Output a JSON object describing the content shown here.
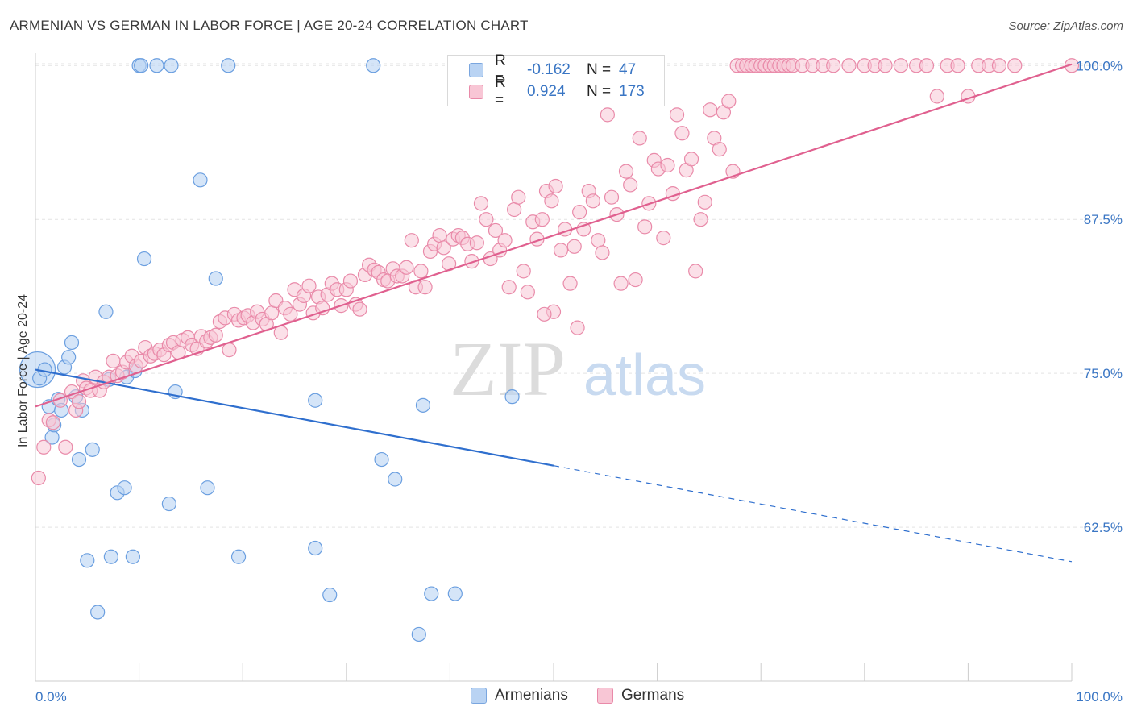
{
  "title": "ARMENIAN VS GERMAN IN LABOR FORCE | AGE 20-24 CORRELATION CHART",
  "source": "Source: ZipAtlas.com",
  "watermark": {
    "zip": "ZIP",
    "atlas": "atlas"
  },
  "legend": {
    "rows": [
      {
        "r_label": "R =",
        "r_value": "-0.162",
        "n_label": "N =",
        "n_value": "47",
        "color": "#a9c8ef"
      },
      {
        "r_label": "R =",
        "r_value": "0.924",
        "n_label": "N =",
        "n_value": "173",
        "color": "#f5b6c9"
      }
    ]
  },
  "bottom_legend": [
    "Armenians",
    "Germans"
  ],
  "chart_data": {
    "type": "scatter",
    "xlabel": "",
    "ylabel": "In Labor Force | Age 20-24",
    "xlim": [
      0,
      100
    ],
    "ylim": [
      50.0,
      101.0
    ],
    "x_tick_labels": [
      "0.0%",
      "100.0%"
    ],
    "y_ticks": [
      62.5,
      75.0,
      87.5,
      100.0
    ],
    "y_tick_labels": [
      "62.5%",
      "75.0%",
      "87.5%",
      "100.0%"
    ],
    "grid": true,
    "legend_position": "top-center",
    "colors": {
      "armenians": "#6b9fe0",
      "armenians_fill": "#b9d3f3",
      "armenians_line": "#2f6fce",
      "germans": "#e98aa9",
      "germans_fill": "#f8c6d5",
      "germans_line": "#e0608f"
    },
    "series": [
      {
        "name": "Armenians",
        "trend": {
          "x0": 0,
          "y0": 75.3,
          "x1": 50,
          "y1": 67.5,
          "dashed_to_x": 100,
          "dashed_to_y": 59.7
        },
        "points": [
          [
            0.2,
            75.3
          ],
          [
            0.4,
            74.6
          ],
          [
            0.9,
            75.3
          ],
          [
            1.3,
            72.3
          ],
          [
            1.6,
            69.8
          ],
          [
            1.8,
            70.8
          ],
          [
            2.2,
            72.9
          ],
          [
            2.5,
            72.0
          ],
          [
            2.8,
            75.5
          ],
          [
            3.2,
            76.3
          ],
          [
            3.5,
            77.5
          ],
          [
            3.9,
            73.1
          ],
          [
            4.2,
            68.0
          ],
          [
            4.5,
            72.0
          ],
          [
            5.0,
            59.8
          ],
          [
            5.5,
            68.8
          ],
          [
            6.0,
            55.6
          ],
          [
            6.8,
            80.0
          ],
          [
            7.1,
            74.5
          ],
          [
            7.3,
            60.1
          ],
          [
            7.9,
            65.3
          ],
          [
            8.6,
            65.7
          ],
          [
            8.8,
            74.7
          ],
          [
            9.4,
            60.1
          ],
          [
            9.6,
            75.2
          ],
          [
            10.0,
            100.0
          ],
          [
            10.2,
            100.0
          ],
          [
            10.5,
            84.3
          ],
          [
            11.7,
            100.0
          ],
          [
            12.9,
            64.4
          ],
          [
            13.1,
            100.0
          ],
          [
            13.5,
            73.5
          ],
          [
            15.9,
            90.7
          ],
          [
            16.6,
            65.7
          ],
          [
            17.4,
            82.7
          ],
          [
            18.6,
            100.0
          ],
          [
            19.6,
            60.1
          ],
          [
            27.0,
            72.8
          ],
          [
            27.0,
            60.8
          ],
          [
            28.4,
            57.0
          ],
          [
            32.6,
            100.0
          ],
          [
            33.4,
            68.0
          ],
          [
            34.7,
            66.4
          ],
          [
            37.4,
            72.4
          ],
          [
            38.2,
            57.1
          ],
          [
            40.5,
            57.1
          ],
          [
            46.0,
            73.1
          ],
          [
            37.0,
            53.8
          ]
        ]
      },
      {
        "name": "Germans",
        "trend": {
          "x0": 0,
          "y0": 72.3,
          "x1": 100,
          "y1": 100.1
        },
        "points": [
          [
            0.3,
            66.5
          ],
          [
            0.8,
            69.0
          ],
          [
            1.3,
            71.2
          ],
          [
            1.7,
            71.0
          ],
          [
            2.4,
            72.8
          ],
          [
            2.9,
            69.0
          ],
          [
            3.5,
            73.5
          ],
          [
            3.9,
            72.0
          ],
          [
            4.2,
            72.7
          ],
          [
            4.6,
            74.4
          ],
          [
            4.9,
            73.8
          ],
          [
            5.3,
            73.6
          ],
          [
            5.8,
            74.7
          ],
          [
            6.2,
            73.6
          ],
          [
            6.6,
            74.3
          ],
          [
            7.1,
            74.7
          ],
          [
            7.5,
            76.0
          ],
          [
            7.9,
            74.8
          ],
          [
            8.4,
            75.1
          ],
          [
            8.8,
            75.9
          ],
          [
            9.3,
            76.4
          ],
          [
            9.7,
            75.6
          ],
          [
            10.2,
            76.0
          ],
          [
            10.6,
            77.1
          ],
          [
            11.1,
            76.4
          ],
          [
            11.5,
            76.6
          ],
          [
            12.0,
            76.9
          ],
          [
            12.4,
            76.5
          ],
          [
            12.9,
            77.3
          ],
          [
            13.3,
            77.5
          ],
          [
            13.8,
            76.7
          ],
          [
            14.2,
            77.7
          ],
          [
            14.7,
            77.9
          ],
          [
            15.1,
            77.3
          ],
          [
            15.6,
            77.0
          ],
          [
            16.0,
            78.0
          ],
          [
            16.5,
            77.6
          ],
          [
            16.9,
            77.9
          ],
          [
            17.4,
            78.1
          ],
          [
            17.8,
            79.2
          ],
          [
            18.3,
            79.5
          ],
          [
            18.7,
            76.9
          ],
          [
            19.2,
            79.8
          ],
          [
            19.6,
            79.3
          ],
          [
            20.1,
            79.5
          ],
          [
            20.5,
            79.7
          ],
          [
            21.0,
            79.1
          ],
          [
            21.4,
            80.0
          ],
          [
            21.9,
            79.4
          ],
          [
            22.3,
            79.0
          ],
          [
            22.8,
            79.9
          ],
          [
            23.2,
            80.9
          ],
          [
            23.7,
            78.3
          ],
          [
            24.1,
            80.3
          ],
          [
            24.6,
            79.8
          ],
          [
            25.0,
            81.8
          ],
          [
            25.5,
            80.6
          ],
          [
            25.9,
            81.3
          ],
          [
            26.4,
            82.1
          ],
          [
            26.8,
            79.9
          ],
          [
            27.3,
            81.2
          ],
          [
            27.7,
            80.3
          ],
          [
            28.2,
            81.4
          ],
          [
            28.6,
            82.3
          ],
          [
            29.1,
            81.8
          ],
          [
            29.5,
            80.5
          ],
          [
            30.0,
            81.8
          ],
          [
            30.4,
            82.5
          ],
          [
            30.9,
            80.6
          ],
          [
            31.3,
            80.2
          ],
          [
            31.8,
            83.0
          ],
          [
            32.2,
            83.8
          ],
          [
            32.7,
            83.4
          ],
          [
            33.1,
            83.2
          ],
          [
            33.6,
            82.6
          ],
          [
            34.0,
            82.5
          ],
          [
            34.5,
            83.5
          ],
          [
            34.9,
            82.9
          ],
          [
            35.4,
            82.9
          ],
          [
            35.8,
            83.6
          ],
          [
            36.3,
            85.8
          ],
          [
            36.7,
            82.0
          ],
          [
            37.2,
            83.3
          ],
          [
            37.6,
            82.0
          ],
          [
            38.1,
            84.9
          ],
          [
            38.5,
            85.5
          ],
          [
            39.0,
            86.2
          ],
          [
            39.4,
            85.2
          ],
          [
            39.9,
            83.9
          ],
          [
            40.3,
            85.9
          ],
          [
            40.8,
            86.2
          ],
          [
            41.2,
            86.0
          ],
          [
            41.7,
            85.5
          ],
          [
            42.1,
            84.1
          ],
          [
            42.6,
            85.6
          ],
          [
            43.0,
            88.8
          ],
          [
            43.5,
            87.5
          ],
          [
            43.9,
            84.3
          ],
          [
            44.4,
            86.6
          ],
          [
            44.8,
            85.0
          ],
          [
            45.3,
            85.8
          ],
          [
            45.7,
            82.0
          ],
          [
            46.2,
            88.3
          ],
          [
            46.6,
            89.3
          ],
          [
            47.1,
            83.3
          ],
          [
            47.5,
            81.6
          ],
          [
            48.0,
            87.3
          ],
          [
            48.4,
            85.9
          ],
          [
            48.9,
            87.5
          ],
          [
            49.3,
            89.8
          ],
          [
            49.8,
            89.0
          ],
          [
            50.2,
            90.2
          ],
          [
            50.7,
            85.0
          ],
          [
            51.1,
            86.7
          ],
          [
            51.6,
            82.3
          ],
          [
            52.0,
            85.3
          ],
          [
            52.5,
            88.1
          ],
          [
            52.9,
            86.7
          ],
          [
            53.4,
            89.8
          ],
          [
            53.8,
            89.0
          ],
          [
            54.3,
            85.8
          ],
          [
            54.7,
            84.8
          ],
          [
            55.2,
            96.0
          ],
          [
            55.6,
            89.3
          ],
          [
            56.1,
            87.9
          ],
          [
            56.5,
            82.3
          ],
          [
            57.0,
            91.4
          ],
          [
            57.4,
            90.3
          ],
          [
            57.9,
            82.6
          ],
          [
            58.3,
            94.1
          ],
          [
            58.8,
            86.9
          ],
          [
            59.2,
            88.8
          ],
          [
            59.7,
            92.3
          ],
          [
            60.1,
            91.6
          ],
          [
            60.6,
            86.0
          ],
          [
            61.0,
            91.9
          ],
          [
            61.5,
            89.6
          ],
          [
            61.9,
            96.0
          ],
          [
            62.4,
            94.5
          ],
          [
            62.8,
            91.5
          ],
          [
            63.3,
            92.4
          ],
          [
            63.7,
            83.3
          ],
          [
            64.2,
            87.5
          ],
          [
            64.6,
            88.9
          ],
          [
            65.1,
            96.4
          ],
          [
            65.5,
            94.1
          ],
          [
            66.0,
            93.2
          ],
          [
            66.4,
            96.2
          ],
          [
            66.9,
            97.1
          ],
          [
            67.3,
            91.4
          ],
          [
            67.7,
            100.0
          ],
          [
            68.2,
            100.0
          ],
          [
            68.6,
            100.0
          ],
          [
            69.1,
            100.0
          ],
          [
            69.5,
            100.0
          ],
          [
            70.0,
            100.0
          ],
          [
            70.4,
            100.0
          ],
          [
            70.9,
            100.0
          ],
          [
            71.3,
            100.0
          ],
          [
            71.8,
            100.0
          ],
          [
            72.2,
            100.0
          ],
          [
            72.7,
            100.0
          ],
          [
            73.1,
            100.0
          ],
          [
            74.0,
            100.0
          ],
          [
            75.0,
            100.0
          ],
          [
            76.0,
            100.0
          ],
          [
            77.0,
            100.0
          ],
          [
            78.5,
            100.0
          ],
          [
            80.0,
            100.0
          ],
          [
            81.0,
            100.0
          ],
          [
            82.0,
            100.0
          ],
          [
            83.5,
            100.0
          ],
          [
            85.0,
            100.0
          ],
          [
            86.0,
            100.0
          ],
          [
            87.0,
            97.5
          ],
          [
            88.0,
            100.0
          ],
          [
            89.0,
            100.0
          ],
          [
            90.0,
            97.5
          ],
          [
            91.0,
            100.0
          ],
          [
            92.0,
            100.0
          ],
          [
            93.0,
            100.0
          ],
          [
            94.5,
            100.0
          ],
          [
            100.0,
            100.0
          ],
          [
            50.0,
            80.0
          ],
          [
            52.3,
            78.7
          ],
          [
            49.1,
            79.8
          ]
        ]
      }
    ]
  }
}
